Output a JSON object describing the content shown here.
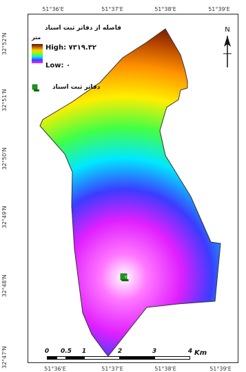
{
  "map": {
    "legend": {
      "title": "فاصله از دفاتر ثبت اسناد",
      "unit": "متر",
      "high": "High: ۷۳۱۹.۳۲",
      "low": "Low: ۰",
      "office_label": "دفاتر ثبت اسناد",
      "office_icon": "office-marker-icon"
    },
    "north_arrow": {
      "label": "N",
      "icon": "north-arrow-icon"
    },
    "longitude_ticks_top": [
      "51°36'E",
      "51°37'E",
      "51°38'E",
      "51°39'E"
    ],
    "longitude_ticks_bottom": [
      "51°36'E",
      "51°37'E",
      "51°38'E",
      "51°39'E"
    ],
    "latitude_ticks": [
      "32°52'N",
      "32°51'N",
      "32°50'N",
      "32°49'N",
      "32°48'N",
      "32°47'N"
    ],
    "scale_bar": {
      "labels": [
        "0",
        "0.5",
        "1",
        "2",
        "3",
        "4"
      ],
      "unit": "Km"
    },
    "office_marker_label": "۲۴",
    "colors": {
      "frame": "#222222",
      "ramp_high": "#5a1300",
      "ramp_mid": "#00e8ff",
      "ramp_low": "#ffffff"
    }
  }
}
